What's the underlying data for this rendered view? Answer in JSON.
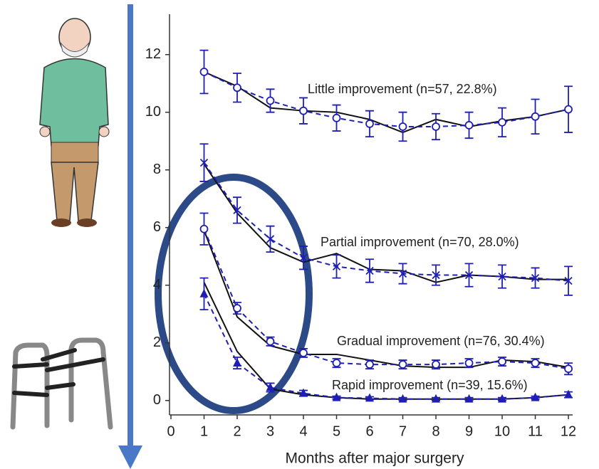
{
  "chart_data": {
    "type": "line",
    "x_label": "Months after major surgery",
    "x": [
      1,
      2,
      3,
      4,
      5,
      6,
      7,
      8,
      9,
      10,
      11,
      12
    ],
    "xlim": [
      0,
      12.3
    ],
    "xticks": [
      0,
      1,
      2,
      3,
      4,
      5,
      6,
      7,
      8,
      9,
      10,
      11,
      12
    ],
    "ylim": [
      -0.5,
      13.4
    ],
    "yticks": [
      0,
      2,
      4,
      6,
      8,
      10,
      12
    ],
    "observed_color": "#1f1fb4",
    "fitted_color": "#111111",
    "groups": [
      {
        "label": "Little improvement (n=57, 22.8%)",
        "marker": "circle",
        "observed": [
          11.4,
          10.85,
          10.4,
          10.05,
          9.8,
          9.6,
          9.5,
          9.5,
          9.55,
          9.65,
          9.85,
          10.1
        ],
        "errors": [
          0.75,
          0.5,
          0.4,
          0.45,
          0.45,
          0.45,
          0.5,
          0.45,
          0.45,
          0.5,
          0.6,
          0.8
        ],
        "fitted": [
          11.4,
          10.9,
          10.15,
          10.05,
          10.0,
          9.75,
          9.3,
          9.75,
          9.5,
          9.7,
          9.85,
          10.1
        ]
      },
      {
        "label": "Partial improvement (n=70, 28.0%)",
        "marker": "x",
        "observed": [
          8.25,
          6.6,
          5.6,
          4.95,
          4.65,
          4.5,
          4.4,
          4.35,
          4.35,
          4.3,
          4.25,
          4.15
        ],
        "errors": [
          0.65,
          0.45,
          0.45,
          0.4,
          0.4,
          0.4,
          0.35,
          0.35,
          0.4,
          0.4,
          0.35,
          0.5
        ],
        "fitted": [
          8.2,
          6.5,
          5.3,
          4.8,
          5.1,
          4.55,
          4.5,
          4.1,
          4.35,
          4.3,
          4.2,
          4.2
        ]
      },
      {
        "label": "Gradual improvement (n=76, 30.4%)",
        "marker": "circle",
        "observed": [
          5.95,
          3.2,
          2.05,
          1.65,
          1.3,
          1.25,
          1.25,
          1.25,
          1.3,
          1.35,
          1.3,
          1.1
        ],
        "errors": [
          0.55,
          0.2,
          0.15,
          0.15,
          0.15,
          0.15,
          0.15,
          0.15,
          0.15,
          0.15,
          0.15,
          0.2
        ],
        "fitted": [
          5.9,
          2.9,
          1.9,
          1.6,
          1.6,
          1.4,
          1.2,
          1.15,
          1.15,
          1.4,
          1.35,
          1.15
        ]
      },
      {
        "label": "Rapid improvement (n=39, 15.6%)",
        "marker": "triangle",
        "observed": [
          3.7,
          1.3,
          0.45,
          0.25,
          0.1,
          0.08,
          0.05,
          0.05,
          0.05,
          0.05,
          0.1,
          0.2
        ],
        "errors": [
          0.55,
          0.2,
          0.15,
          0.1,
          0.05,
          0.05,
          0.05,
          0.05,
          0.05,
          0.05,
          0.05,
          0.1
        ],
        "fitted": [
          4.1,
          1.7,
          0.4,
          0.2,
          0.1,
          0.05,
          0.05,
          0.05,
          0.05,
          0.05,
          0.1,
          0.2
        ]
      }
    ]
  }
}
